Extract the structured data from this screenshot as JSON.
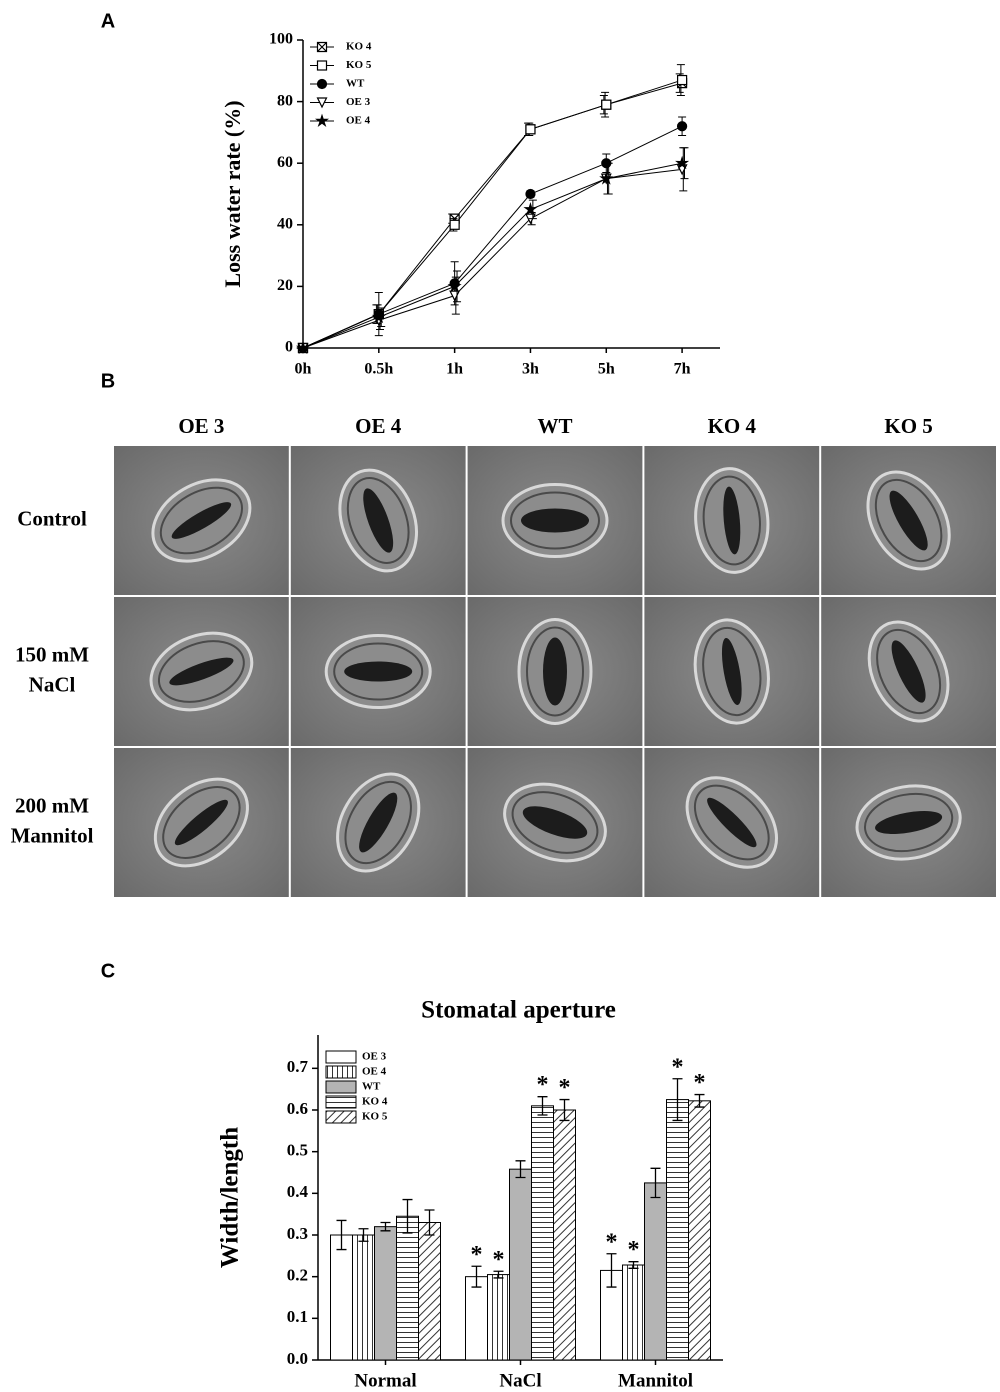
{
  "panel_labels": [
    "A",
    "B",
    "C"
  ],
  "micrographs": {
    "columns": [
      "OE 3",
      "OE 4",
      "WT",
      "KO 4",
      "KO 5"
    ],
    "rows": [
      [
        "Control"
      ],
      [
        "150 mM",
        "NaCl"
      ],
      [
        "200 mM",
        "Mannitol"
      ]
    ]
  },
  "chart_data": [
    {
      "type": "line",
      "y_label": "Loss water rate (%)",
      "categories": [
        "0h",
        "0.5h",
        "1h",
        "3h",
        "5h",
        "7h"
      ],
      "ylim": [
        0,
        100
      ],
      "yticks": [
        0,
        20,
        40,
        60,
        80,
        100
      ],
      "legend": "top-left",
      "series": [
        {
          "name": "KO 4",
          "color": "#000000",
          "marker": "x-square",
          "values": [
            0,
            11,
            42,
            71,
            79,
            86
          ],
          "errors": [
            0,
            3,
            1.5,
            2,
            3,
            3
          ]
        },
        {
          "name": "KO 5",
          "color": "#000000",
          "marker": "square",
          "values": [
            0,
            11,
            40,
            71,
            79,
            87
          ],
          "errors": [
            0,
            3,
            2,
            2,
            4,
            5
          ]
        },
        {
          "name": "WT",
          "color": "#000000",
          "marker": "circle",
          "values": [
            0,
            11,
            21,
            50,
            60,
            72
          ],
          "errors": [
            0,
            7,
            7,
            1,
            3,
            3
          ]
        },
        {
          "name": "OE 3",
          "color": "#000000",
          "marker": "triangle-down",
          "values": [
            0,
            9,
            17,
            42,
            55,
            58
          ],
          "errors": [
            0,
            3,
            6,
            2,
            5,
            7
          ]
        },
        {
          "name": "OE 4",
          "color": "#000000",
          "marker": "star",
          "values": [
            0,
            10,
            20,
            45,
            55,
            60
          ],
          "errors": [
            0,
            3,
            5,
            3,
            5,
            5
          ]
        }
      ]
    },
    {
      "type": "bar",
      "title": "Stomatal aperture",
      "y_label": "Width/length",
      "categories": [
        "Normal",
        "NaCl",
        "Mannitol"
      ],
      "ylim": [
        0,
        0.78
      ],
      "yticks": [
        {
          "value": 0,
          "label": "0.0"
        },
        0.1,
        0.2,
        0.3,
        0.4,
        0.5,
        0.6,
        0.7
      ],
      "legend": "top-left",
      "series": [
        {
          "name": "OE 3",
          "color": "#ffffff",
          "pattern": "none",
          "values": [
            0.3,
            0.2,
            0.215
          ],
          "errors": [
            0.035,
            0.025,
            0.04
          ],
          "annotations": [
            null,
            "*",
            "*"
          ]
        },
        {
          "name": "OE 4",
          "color": "#ffffff",
          "pattern": "vertical",
          "values": [
            0.3,
            0.205,
            0.228
          ],
          "errors": [
            0.015,
            0.008,
            0.008
          ],
          "annotations": [
            null,
            "*",
            "*"
          ]
        },
        {
          "name": "WT",
          "color": "#b4b4b4",
          "pattern": "solid",
          "values": [
            0.32,
            0.458,
            0.425
          ],
          "errors": [
            0.01,
            0.02,
            0.035
          ],
          "annotations": [
            null,
            null,
            null
          ]
        },
        {
          "name": "KO 4",
          "color": "#ffffff",
          "pattern": "horizontal",
          "values": [
            0.345,
            0.61,
            0.625
          ],
          "errors": [
            0.04,
            0.022,
            0.05
          ],
          "annotations": [
            null,
            "*",
            "*"
          ]
        },
        {
          "name": "KO 5",
          "color": "#ffffff",
          "pattern": "diagonal",
          "values": [
            0.33,
            0.6,
            0.622
          ],
          "errors": [
            0.03,
            0.025,
            0.015
          ],
          "annotations": [
            null,
            "*",
            "*"
          ]
        }
      ]
    }
  ]
}
